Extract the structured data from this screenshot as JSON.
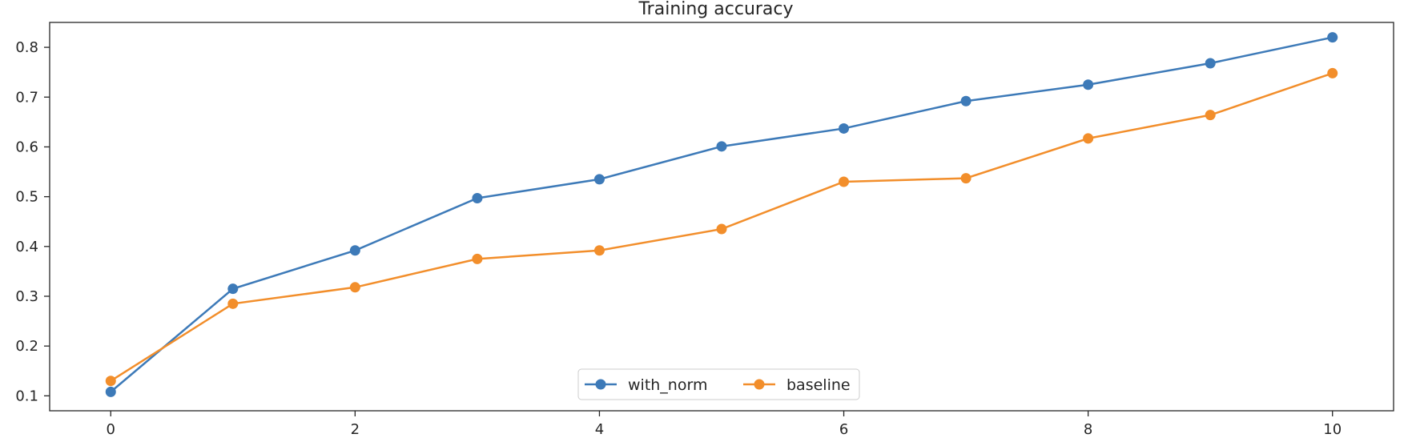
{
  "chart_data": {
    "type": "line",
    "title": "Training accuracy",
    "xlabel": "",
    "ylabel": "",
    "x": [
      0,
      1,
      2,
      3,
      4,
      5,
      6,
      7,
      8,
      9,
      10
    ],
    "xlim": [
      -0.5,
      10.5
    ],
    "ylim": [
      0.07,
      0.85
    ],
    "xticks": [
      0,
      2,
      4,
      6,
      8,
      10
    ],
    "yticks": [
      0.1,
      0.2,
      0.3,
      0.4,
      0.5,
      0.6,
      0.7,
      0.8
    ],
    "grid": false,
    "legend_position": "lower-center",
    "series": [
      {
        "name": "with_norm",
        "color": "#3d7ab8",
        "values": [
          0.108,
          0.315,
          0.392,
          0.497,
          0.535,
          0.601,
          0.637,
          0.692,
          0.725,
          0.768,
          0.82
        ]
      },
      {
        "name": "baseline",
        "color": "#f28e2b",
        "values": [
          0.13,
          0.285,
          0.318,
          0.375,
          0.392,
          0.435,
          0.53,
          0.537,
          0.617,
          0.664,
          0.748
        ]
      }
    ]
  }
}
